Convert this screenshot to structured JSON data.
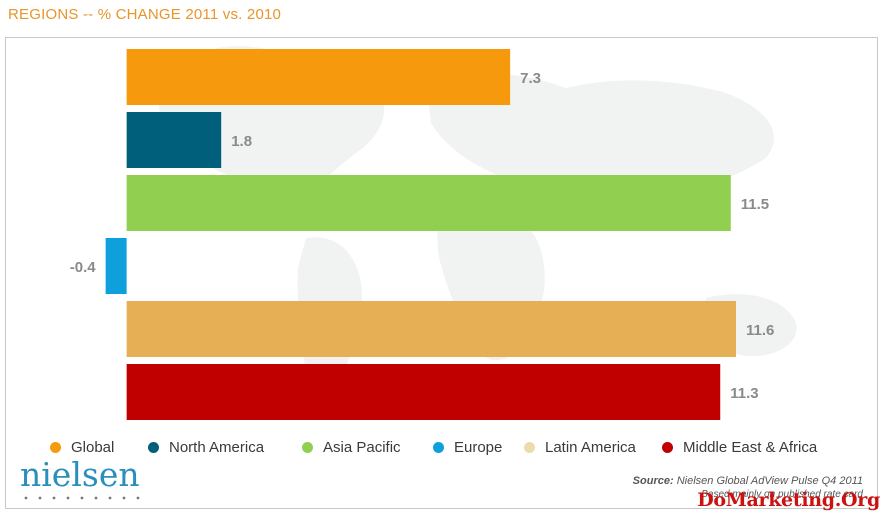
{
  "title": "REGIONS -- % CHANGE 2011 vs. 2010",
  "chart_data": {
    "type": "bar",
    "orientation": "horizontal",
    "categories": [
      "Global",
      "North America",
      "Asia Pacific",
      "Europe",
      "Latin America",
      "Middle East & Africa"
    ],
    "values": [
      7.3,
      1.8,
      11.5,
      -0.4,
      11.6,
      11.3
    ],
    "value_labels": [
      "7.3",
      "1.8",
      "11.5",
      "-0.4",
      "11.6",
      "11.3"
    ],
    "colors": [
      "#f7990d",
      "#005f7a",
      "#91cf50",
      "#0ea0dc",
      "#e6ae55",
      "#c00000"
    ],
    "xlim": [
      -0.45,
      11.6
    ],
    "grid": false,
    "legend_position": "bottom",
    "title": "REGIONS -- % CHANGE 2011 vs. 2010"
  },
  "legend": [
    {
      "label": "Global",
      "color": "#f7990d"
    },
    {
      "label": "North America",
      "color": "#005f7a"
    },
    {
      "label": "Asia Pacific",
      "color": "#91cf50"
    },
    {
      "label": "Europe",
      "color": "#0ea0dc"
    },
    {
      "label": "Latin America",
      "color": "#ebdcab"
    },
    {
      "label": "Middle East & Africa",
      "color": "#c00000"
    }
  ],
  "logo": {
    "text": "nielsen",
    "color": "#2a8fbd"
  },
  "source": {
    "label": "Source:",
    "text": "Nielsen Global AdView Pulse Q4 2011",
    "note": "Based mainly on published rate card"
  },
  "watermark": "DoMarketing.Org"
}
